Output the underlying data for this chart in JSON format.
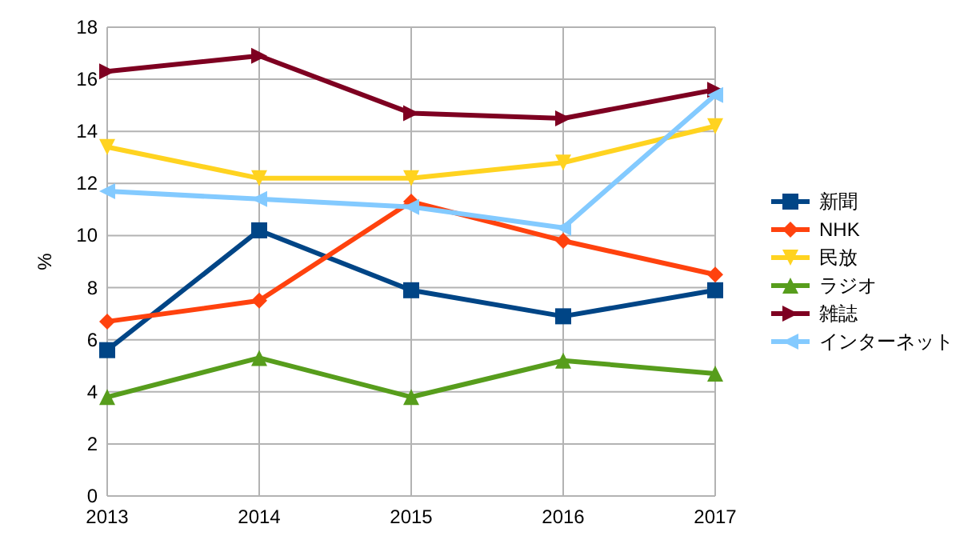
{
  "chart_data": {
    "type": "line",
    "ylabel": "%",
    "x": [
      2013,
      2014,
      2015,
      2016,
      2017
    ],
    "xlim": [
      2013,
      2017
    ],
    "xticks": [
      2013,
      2014,
      2015,
      2016,
      2017
    ],
    "ylim": [
      0,
      18
    ],
    "yticks": [
      0,
      2,
      4,
      6,
      8,
      10,
      12,
      14,
      16,
      18
    ],
    "grid": true,
    "legend": "right",
    "line_style": "solid",
    "series": [
      {
        "name": "新聞",
        "color": "#004586",
        "marker": "square",
        "values": [
          5.6,
          10.2,
          7.9,
          6.9,
          7.9
        ]
      },
      {
        "name": "NHK",
        "color": "#ff420e",
        "marker": "diamond",
        "values": [
          6.7,
          7.5,
          11.3,
          9.8,
          8.5
        ]
      },
      {
        "name": "民放",
        "color": "#ffd320",
        "marker": "triangle-down",
        "values": [
          13.4,
          12.2,
          12.2,
          12.8,
          14.2
        ]
      },
      {
        "name": "ラジオ",
        "color": "#579d1c",
        "marker": "triangle",
        "values": [
          3.8,
          5.3,
          3.8,
          5.2,
          4.7
        ]
      },
      {
        "name": "雑誌",
        "color": "#7e0021",
        "marker": "triangle-right",
        "values": [
          16.3,
          16.9,
          14.7,
          14.5,
          15.6
        ]
      },
      {
        "name": "インターネット",
        "color": "#83caff",
        "marker": "triangle-left",
        "values": [
          11.7,
          11.4,
          11.1,
          10.3,
          15.4
        ]
      }
    ]
  }
}
